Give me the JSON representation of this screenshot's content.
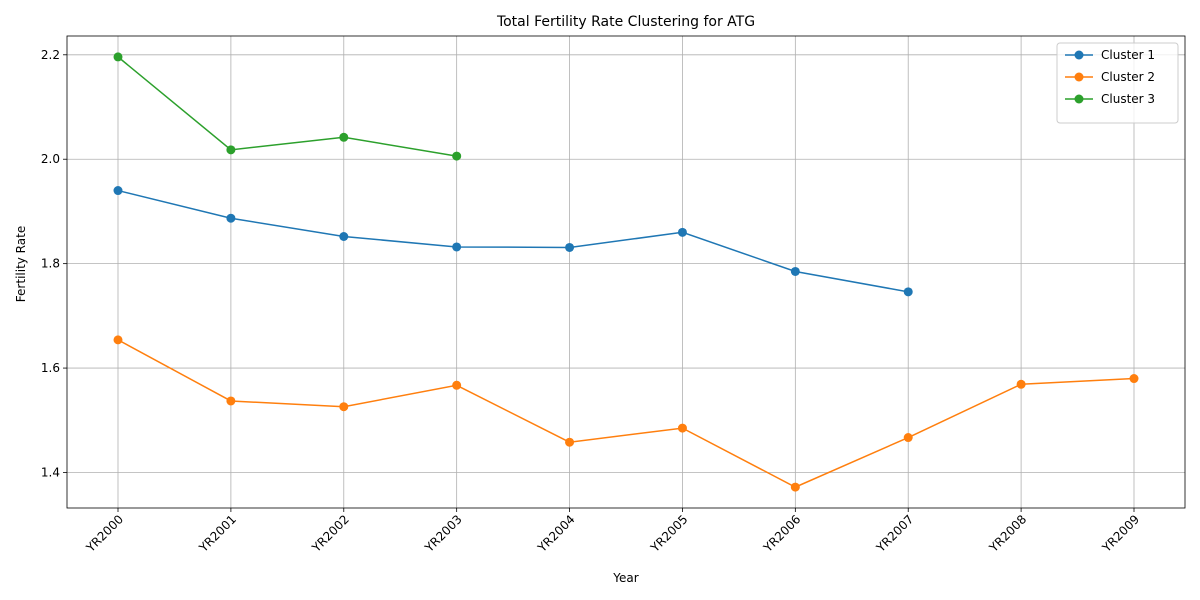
{
  "chart_data": {
    "type": "line",
    "title": "Total Fertility Rate Clustering for ATG",
    "xlabel": "Year",
    "ylabel": "Fertility Rate",
    "categories": [
      "YR2000",
      "YR2001",
      "YR2002",
      "YR2003",
      "YR2004",
      "YR2005",
      "YR2006",
      "YR2007",
      "YR2008",
      "YR2009"
    ],
    "ylim": [
      1.332,
      2.236
    ],
    "yticks": [
      "1.4",
      "1.6",
      "1.8",
      "2.0",
      "2.2"
    ],
    "grid": true,
    "legend_position": "top-right",
    "series": [
      {
        "name": "Cluster 1",
        "color": "#1f77b4",
        "values": [
          1.94,
          1.887,
          1.852,
          1.832,
          1.831,
          1.86,
          1.785,
          1.746,
          null,
          null
        ]
      },
      {
        "name": "Cluster 2",
        "color": "#ff7f0e",
        "values": [
          1.654,
          1.537,
          1.526,
          1.567,
          1.458,
          1.485,
          1.372,
          1.467,
          1.569,
          1.58
        ]
      },
      {
        "name": "Cluster 3",
        "color": "#2ca02c",
        "values": [
          2.196,
          2.018,
          2.042,
          2.006,
          null,
          null,
          null,
          null,
          null,
          null
        ]
      }
    ]
  }
}
